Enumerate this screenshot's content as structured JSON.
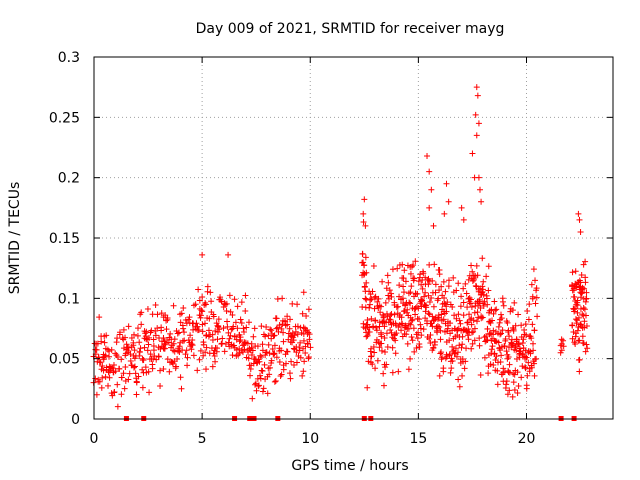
{
  "chart_data": {
    "type": "scatter",
    "title": "Day 009 of 2021, SRMTID for receiver mayg",
    "xlabel": "GPS time / hours",
    "ylabel": "SRMTID / TECUs",
    "xlim": [
      0,
      24
    ],
    "ylim": [
      0,
      0.3
    ],
    "xticks": [
      0,
      5,
      10,
      15,
      20
    ],
    "xtick_labels": [
      "0",
      "5",
      "10",
      "15",
      "20"
    ],
    "yticks": [
      0,
      0.05,
      0.1,
      0.15,
      0.2,
      0.25,
      0.3
    ],
    "ytick_labels": [
      "0",
      "0.05",
      "0.1",
      "0.15",
      "0.2",
      "0.25",
      "0.3"
    ],
    "grid": true,
    "marker": "+",
    "color": "#ff0000",
    "series": [
      {
        "name": "SRMTID",
        "segments": [
          {
            "x0": 0.0,
            "x1": 10.0,
            "step": 0.045,
            "profile": [
              [
                0.0,
                0.05
              ],
              [
                1.0,
                0.045
              ],
              [
                2.0,
                0.05
              ],
              [
                3.0,
                0.06
              ],
              [
                4.0,
                0.06
              ],
              [
                5.0,
                0.075
              ],
              [
                6.0,
                0.08
              ],
              [
                7.0,
                0.065
              ],
              [
                7.5,
                0.04
              ],
              [
                8.0,
                0.055
              ],
              [
                9.0,
                0.065
              ],
              [
                10.0,
                0.06
              ]
            ],
            "spread": 0.022
          },
          {
            "x0": 12.4,
            "x1": 12.6,
            "step": 0.02,
            "profile": [
              [
                12.4,
                0.12
              ],
              [
                12.6,
                0.1
              ]
            ],
            "spread": 0.035
          },
          {
            "x0": 12.6,
            "x1": 20.5,
            "step": 0.03,
            "profile": [
              [
                12.6,
                0.075
              ],
              [
                13.5,
                0.08
              ],
              [
                14.5,
                0.09
              ],
              [
                15.5,
                0.095
              ],
              [
                16.0,
                0.085
              ],
              [
                16.5,
                0.075
              ],
              [
                17.0,
                0.065
              ],
              [
                17.5,
                0.1
              ],
              [
                18.0,
                0.09
              ],
              [
                18.5,
                0.065
              ],
              [
                19.5,
                0.055
              ],
              [
                20.0,
                0.06
              ],
              [
                20.5,
                0.08
              ]
            ],
            "spread": 0.028
          },
          {
            "x0": 21.6,
            "x1": 21.7,
            "step": 0.05,
            "profile": [
              [
                21.6,
                0.06
              ],
              [
                21.7,
                0.06
              ]
            ],
            "spread": 0.004
          },
          {
            "x0": 22.1,
            "x1": 22.8,
            "step": 0.02,
            "profile": [
              [
                22.1,
                0.08
              ],
              [
                22.5,
                0.095
              ],
              [
                22.8,
                0.1
              ]
            ],
            "spread": 0.03
          }
        ],
        "spikes": [
          [
            15.4,
            0.218
          ],
          [
            15.5,
            0.205
          ],
          [
            15.6,
            0.19
          ],
          [
            15.5,
            0.175
          ],
          [
            15.7,
            0.16
          ],
          [
            16.3,
            0.195
          ],
          [
            16.4,
            0.18
          ],
          [
            16.2,
            0.17
          ],
          [
            17.0,
            0.175
          ],
          [
            17.1,
            0.165
          ],
          [
            17.5,
            0.22
          ],
          [
            17.6,
            0.2
          ],
          [
            17.7,
            0.275
          ],
          [
            17.75,
            0.268
          ],
          [
            17.65,
            0.252
          ],
          [
            17.8,
            0.245
          ],
          [
            17.7,
            0.235
          ],
          [
            17.8,
            0.2
          ],
          [
            17.85,
            0.19
          ],
          [
            17.9,
            0.18
          ],
          [
            12.5,
            0.182
          ],
          [
            12.45,
            0.17
          ],
          [
            12.55,
            0.16
          ],
          [
            22.4,
            0.17
          ],
          [
            22.45,
            0.165
          ],
          [
            22.5,
            0.155
          ],
          [
            5.0,
            0.136
          ],
          [
            6.2,
            0.136
          ],
          [
            8.7,
            0.1
          ],
          [
            9.7,
            0.105
          ]
        ]
      }
    ],
    "gap_markers_x": [
      1.5,
      2.3,
      6.5,
      7.2,
      7.4,
      8.5,
      12.5,
      12.8,
      21.6,
      22.2
    ]
  }
}
